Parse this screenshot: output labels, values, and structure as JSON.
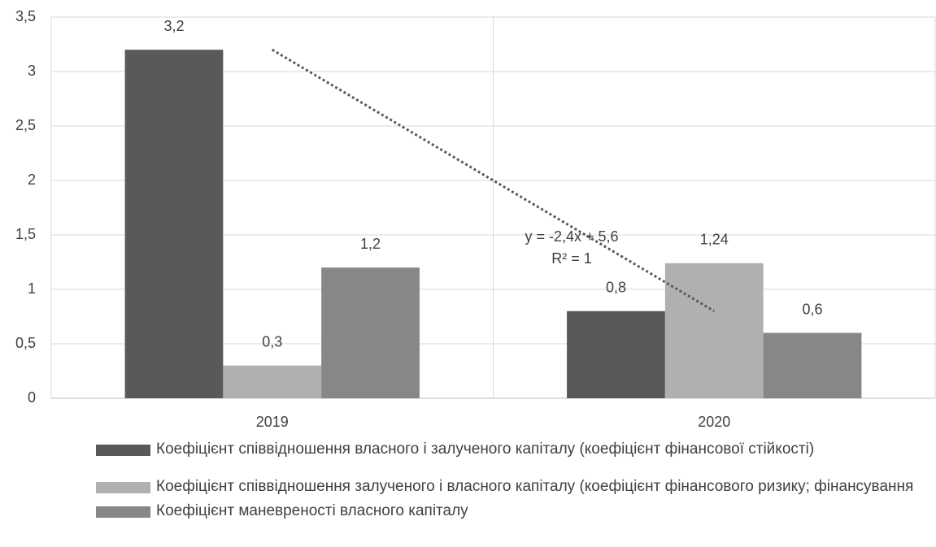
{
  "chart_data": {
    "type": "bar",
    "categories": [
      "2019",
      "2020"
    ],
    "series": [
      {
        "name": "Коефіцієнт співвідношення власного і залученого капіталу (коефіцієнт фінансової стійкості)",
        "color": "#595959",
        "values": [
          3.2,
          0.8
        ],
        "value_labels": [
          "3,2",
          "0,8"
        ]
      },
      {
        "name": "Коефіцієнт співвідношення залученого і власного капіталу (коефіцієнт фінансового ризику; фінансування",
        "color": "#b0b0b0",
        "values": [
          0.3,
          1.24
        ],
        "value_labels": [
          "0,3",
          "1,24"
        ]
      },
      {
        "name": "Коефіцієнт маневреності власного капіталу",
        "color": "#878787",
        "values": [
          1.2,
          0.6
        ],
        "value_labels": [
          "1,2",
          "0,6"
        ]
      }
    ],
    "ylim": [
      0,
      3.5
    ],
    "yticks": [
      0,
      {
        "value": 0.5,
        "label": "0,5"
      },
      1,
      {
        "value": 1.5,
        "label": "1,5"
      },
      2,
      {
        "value": 2.5,
        "label": "2,5"
      },
      3,
      {
        "value": 3.5,
        "label": "3,5"
      }
    ],
    "grid": true,
    "legend": "bottom",
    "trendline": {
      "series": 0,
      "color": "#595959",
      "equation": "y = -2,4x + 5,6",
      "r2": "R² = 1"
    }
  }
}
